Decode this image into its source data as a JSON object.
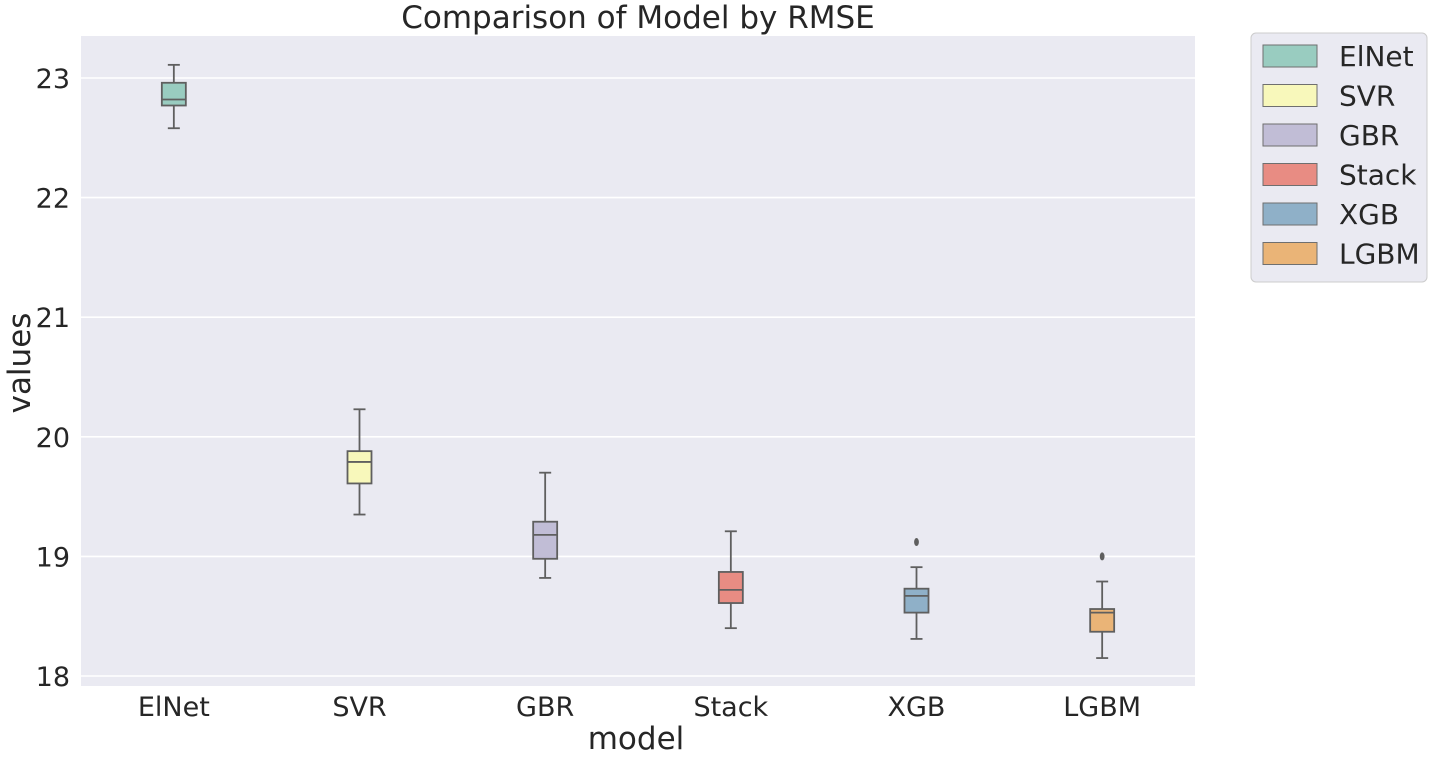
{
  "chart_data": {
    "type": "box",
    "title": "Comparison of Model by RMSE",
    "xlabel": "model",
    "ylabel": "values",
    "ylim": [
      17.9,
      23.35
    ],
    "yticks": [
      "18",
      "19",
      "20",
      "21",
      "22",
      "23"
    ],
    "grid": true,
    "legend_position": "outside-top-right",
    "categories": [
      "ElNet",
      "SVR",
      "GBR",
      "Stack",
      "XGB",
      "LGBM"
    ],
    "series": [
      {
        "name": "ElNet",
        "color": "#99ccc0",
        "whislo": 22.58,
        "q1": 22.77,
        "med": 22.82,
        "q3": 22.96,
        "whishi": 23.11,
        "fliers": []
      },
      {
        "name": "SVR",
        "color": "#f8f8bb",
        "whislo": 19.35,
        "q1": 19.61,
        "med": 19.79,
        "q3": 19.88,
        "whishi": 20.23,
        "fliers": []
      },
      {
        "name": "GBR",
        "color": "#c1bdd6",
        "whislo": 18.82,
        "q1": 18.98,
        "med": 19.18,
        "q3": 19.29,
        "whishi": 19.7,
        "fliers": []
      },
      {
        "name": "Stack",
        "color": "#e88c83",
        "whislo": 18.4,
        "q1": 18.61,
        "med": 18.72,
        "q3": 18.87,
        "whishi": 19.21,
        "fliers": []
      },
      {
        "name": "XGB",
        "color": "#8fb0c8",
        "whislo": 18.31,
        "q1": 18.53,
        "med": 18.67,
        "q3": 18.73,
        "whishi": 18.91,
        "fliers": [
          19.12
        ]
      },
      {
        "name": "LGBM",
        "color": "#eab477",
        "whislo": 18.15,
        "q1": 18.37,
        "med": 18.53,
        "q3": 18.56,
        "whishi": 18.79,
        "fliers": [
          19.0
        ]
      }
    ]
  }
}
